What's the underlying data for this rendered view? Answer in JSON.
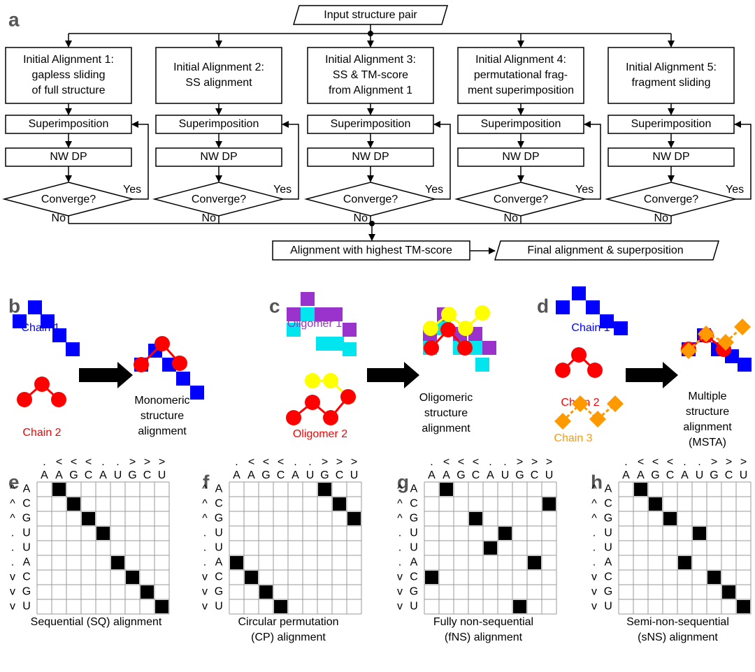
{
  "panel_labels": [
    "a",
    "b",
    "c",
    "d",
    "e",
    "f",
    "g",
    "h"
  ],
  "flowchart": {
    "input": "Input structure pair",
    "columns": [
      {
        "initial": [
          "Initial Alignment 1:",
          "gapless sliding",
          "of full structure"
        ],
        "superimposition": "Superimposition",
        "dp": "NW DP",
        "converge": "Converge?",
        "yes": "Yes",
        "no": "No"
      },
      {
        "initial": [
          "Initial Alignment 2:",
          "SS alignment"
        ],
        "superimposition": "Superimposition",
        "dp": "NW DP",
        "converge": "Converge?",
        "yes": "Yes",
        "no": "No"
      },
      {
        "initial": [
          "Initial Alignment 3:",
          "SS & TM-score",
          "from Alignment 1"
        ],
        "superimposition": "Superimposition",
        "dp": "NW DP",
        "converge": "Converge?",
        "yes": "Yes",
        "no": "No"
      },
      {
        "initial": [
          "Initial Alignment 4:",
          "permutational frag-",
          "ment superimposition"
        ],
        "superimposition": "Superimposition",
        "dp": "NW DP",
        "converge": "Converge?",
        "yes": "Yes",
        "no": "No"
      },
      {
        "initial": [
          "Initial Alignment 5:",
          "fragment sliding"
        ],
        "superimposition": "Superimposition",
        "dp": "NW DP",
        "converge": "Converge?",
        "yes": "Yes",
        "no": "No"
      }
    ],
    "selection": "Alignment with highest TM-score",
    "output": "Final alignment & superposition"
  },
  "panel_b": {
    "chain1": "Chain 1",
    "chain2": "Chain 2",
    "result": [
      "Monomeric",
      "structure",
      "alignment"
    ]
  },
  "panel_c": {
    "oligomer1": "Oligomer 1",
    "oligomer2": "Oligomer 2",
    "result": [
      "Oligomeric",
      "structure",
      "alignment"
    ]
  },
  "panel_d": {
    "chain1": "Chain 1",
    "chain2": "Chain 2",
    "chain3": "Chain 3",
    "result": [
      "Multiple",
      "structure",
      "alignment",
      "(MSTA)"
    ]
  },
  "matrices": [
    {
      "top_structure": [
        ".",
        "<",
        "<",
        "<",
        ".",
        ".",
        ">",
        ">",
        ">"
      ],
      "top_sequence": [
        "A",
        "A",
        "G",
        "C",
        "A",
        "U",
        "G",
        "C",
        "U"
      ],
      "left_structure": [
        "^",
        "^",
        "^",
        ".",
        ".",
        ".",
        "v",
        "v",
        "v"
      ],
      "left_sequence": [
        "A",
        "C",
        "G",
        "U",
        "U",
        "A",
        "C",
        "G",
        "U"
      ],
      "aligned_columns": [
        1,
        2,
        3,
        4,
        null,
        5,
        6,
        7,
        8
      ],
      "caption": [
        "Sequential (SQ) alignment"
      ]
    },
    {
      "top_structure": [
        ".",
        "<",
        "<",
        "<",
        ".",
        ".",
        ">",
        ">",
        ">"
      ],
      "top_sequence": [
        "A",
        "A",
        "G",
        "C",
        "A",
        "U",
        "G",
        "C",
        "U"
      ],
      "left_structure": [
        "^",
        "^",
        "^",
        ".",
        ".",
        ".",
        "v",
        "v",
        "v"
      ],
      "left_sequence": [
        "A",
        "C",
        "G",
        "U",
        "U",
        "A",
        "C",
        "G",
        "U"
      ],
      "aligned_columns": [
        6,
        7,
        8,
        null,
        null,
        0,
        1,
        2,
        3
      ],
      "caption": [
        "Circular permutation",
        "(CP) alignment"
      ]
    },
    {
      "top_structure": [
        ".",
        "<",
        "<",
        "<",
        ".",
        ".",
        ">",
        ">",
        ">"
      ],
      "top_sequence": [
        "A",
        "A",
        "G",
        "C",
        "A",
        "U",
        "G",
        "C",
        "U"
      ],
      "left_structure": [
        "^",
        "^",
        "^",
        ".",
        ".",
        ".",
        "v",
        "v",
        "v"
      ],
      "left_sequence": [
        "A",
        "C",
        "G",
        "U",
        "U",
        "A",
        "C",
        "G",
        "U"
      ],
      "aligned_columns": [
        1,
        8,
        3,
        5,
        4,
        7,
        0,
        null,
        6
      ],
      "caption": [
        "Fully non-sequential",
        "(fNS) alignment"
      ]
    },
    {
      "top_structure": [
        ".",
        "<",
        "<",
        "<",
        ".",
        ".",
        ">",
        ">",
        ">"
      ],
      "top_sequence": [
        "A",
        "A",
        "G",
        "C",
        "A",
        "U",
        "G",
        "C",
        "U"
      ],
      "left_structure": [
        "^",
        "^",
        "^",
        ".",
        ".",
        ".",
        "v",
        "v",
        "v"
      ],
      "left_sequence": [
        "A",
        "C",
        "G",
        "U",
        "U",
        "A",
        "C",
        "G",
        "U"
      ],
      "aligned_columns": [
        1,
        2,
        3,
        5,
        null,
        4,
        6,
        7,
        8
      ],
      "caption": [
        "Semi-non-sequential",
        "(sNS) alignment"
      ]
    }
  ]
}
